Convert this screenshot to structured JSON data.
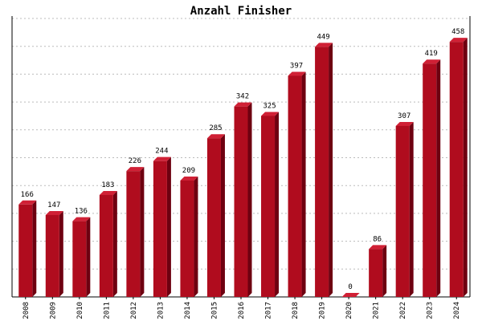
{
  "chart_data": {
    "type": "bar",
    "title": "Anzahl Finisher",
    "categories": [
      "2008",
      "2009",
      "2010",
      "2011",
      "2012",
      "2013",
      "2014",
      "2015",
      "2016",
      "2017",
      "2018",
      "2019",
      "2020",
      "2021",
      "2022",
      "2023",
      "2024"
    ],
    "values": [
      166,
      147,
      136,
      183,
      226,
      244,
      209,
      285,
      342,
      325,
      397,
      449,
      0,
      86,
      307,
      419,
      458
    ],
    "color": "#b00c1e",
    "ylim": [
      0,
      500
    ],
    "yticks": [
      0,
      50,
      100,
      150,
      200,
      250,
      300,
      350,
      400,
      450,
      500
    ],
    "grid": true
  }
}
